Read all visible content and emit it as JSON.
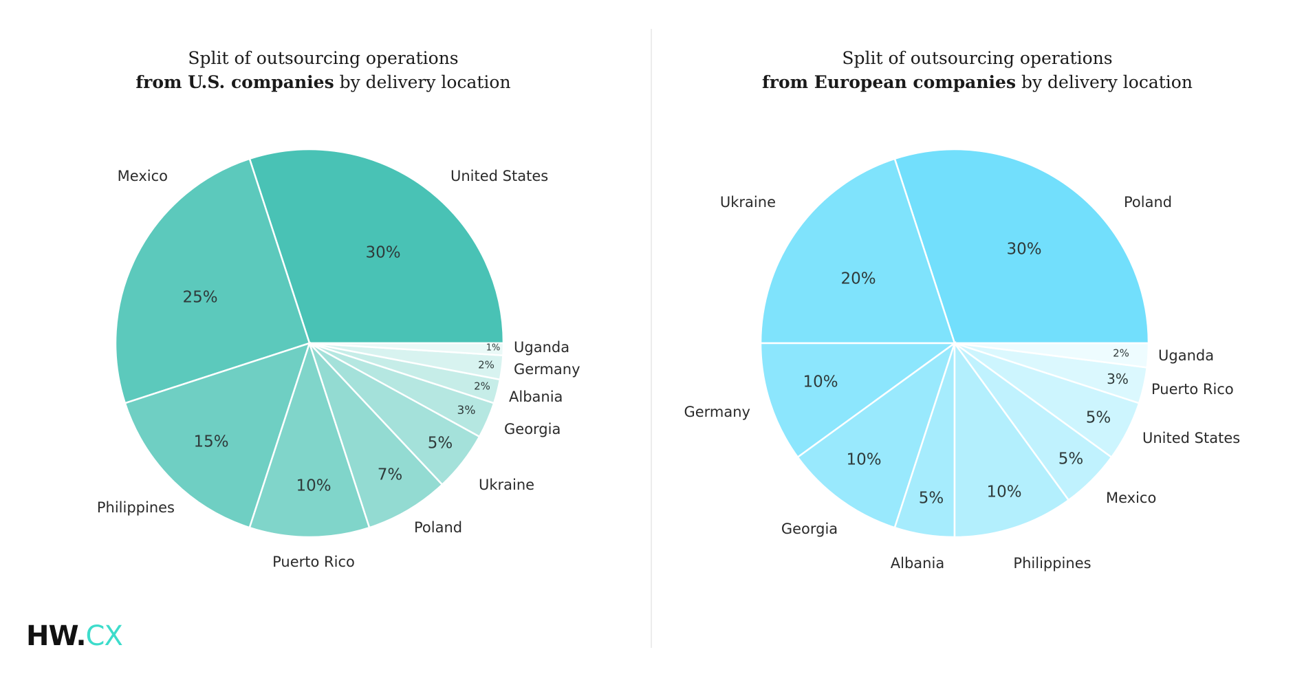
{
  "chart_data": [
    {
      "type": "pie",
      "title_line1": "Split of outsourcing operations",
      "title_bold": "from U.S. companies",
      "title_rest": " by delivery location",
      "categories": [
        "United States",
        "Mexico",
        "Philippines",
        "Puerto Rico",
        "Poland",
        "Ukraine",
        "Georgia",
        "Albania",
        "Germany",
        "Uganda"
      ],
      "values": [
        30,
        25,
        15,
        10,
        7,
        5,
        3,
        2,
        2,
        1
      ],
      "labels": [
        "30%",
        "25%",
        "15%",
        "10%",
        "7%",
        "5%",
        "3%",
        "2%",
        "2%",
        "1%"
      ],
      "colors": [
        "#49c2b5",
        "#5cc9bc",
        "#6fcfc3",
        "#80d5ca",
        "#93dbd2",
        "#a4e1da",
        "#b5e7e1",
        "#c6ede8",
        "#d8f3f0",
        "#eaf9f7"
      ]
    },
    {
      "type": "pie",
      "title_line1": "Split of outsourcing operations",
      "title_bold": "from European companies",
      "title_rest": " by delivery location",
      "categories": [
        "Poland",
        "Ukraine",
        "Germany",
        "Georgia",
        "Albania",
        "Philippines",
        "Mexico",
        "United States",
        "Puerto Rico",
        "Uganda"
      ],
      "values": [
        30,
        20,
        10,
        10,
        5,
        10,
        5,
        5,
        3,
        2
      ],
      "labels": [
        "30%",
        "20%",
        "10%",
        "10%",
        "5%",
        "10%",
        "5%",
        "5%",
        "3%",
        "2%"
      ],
      "colors": [
        "#72dffc",
        "#7fe3fc",
        "#8ce6fd",
        "#99e9fd",
        "#a6ecfd",
        "#b3effd",
        "#c0f2fe",
        "#cdf5fe",
        "#dbf8fe",
        "#eefcff"
      ]
    }
  ],
  "logo": {
    "part1": "HW.",
    "part2": "CX"
  }
}
